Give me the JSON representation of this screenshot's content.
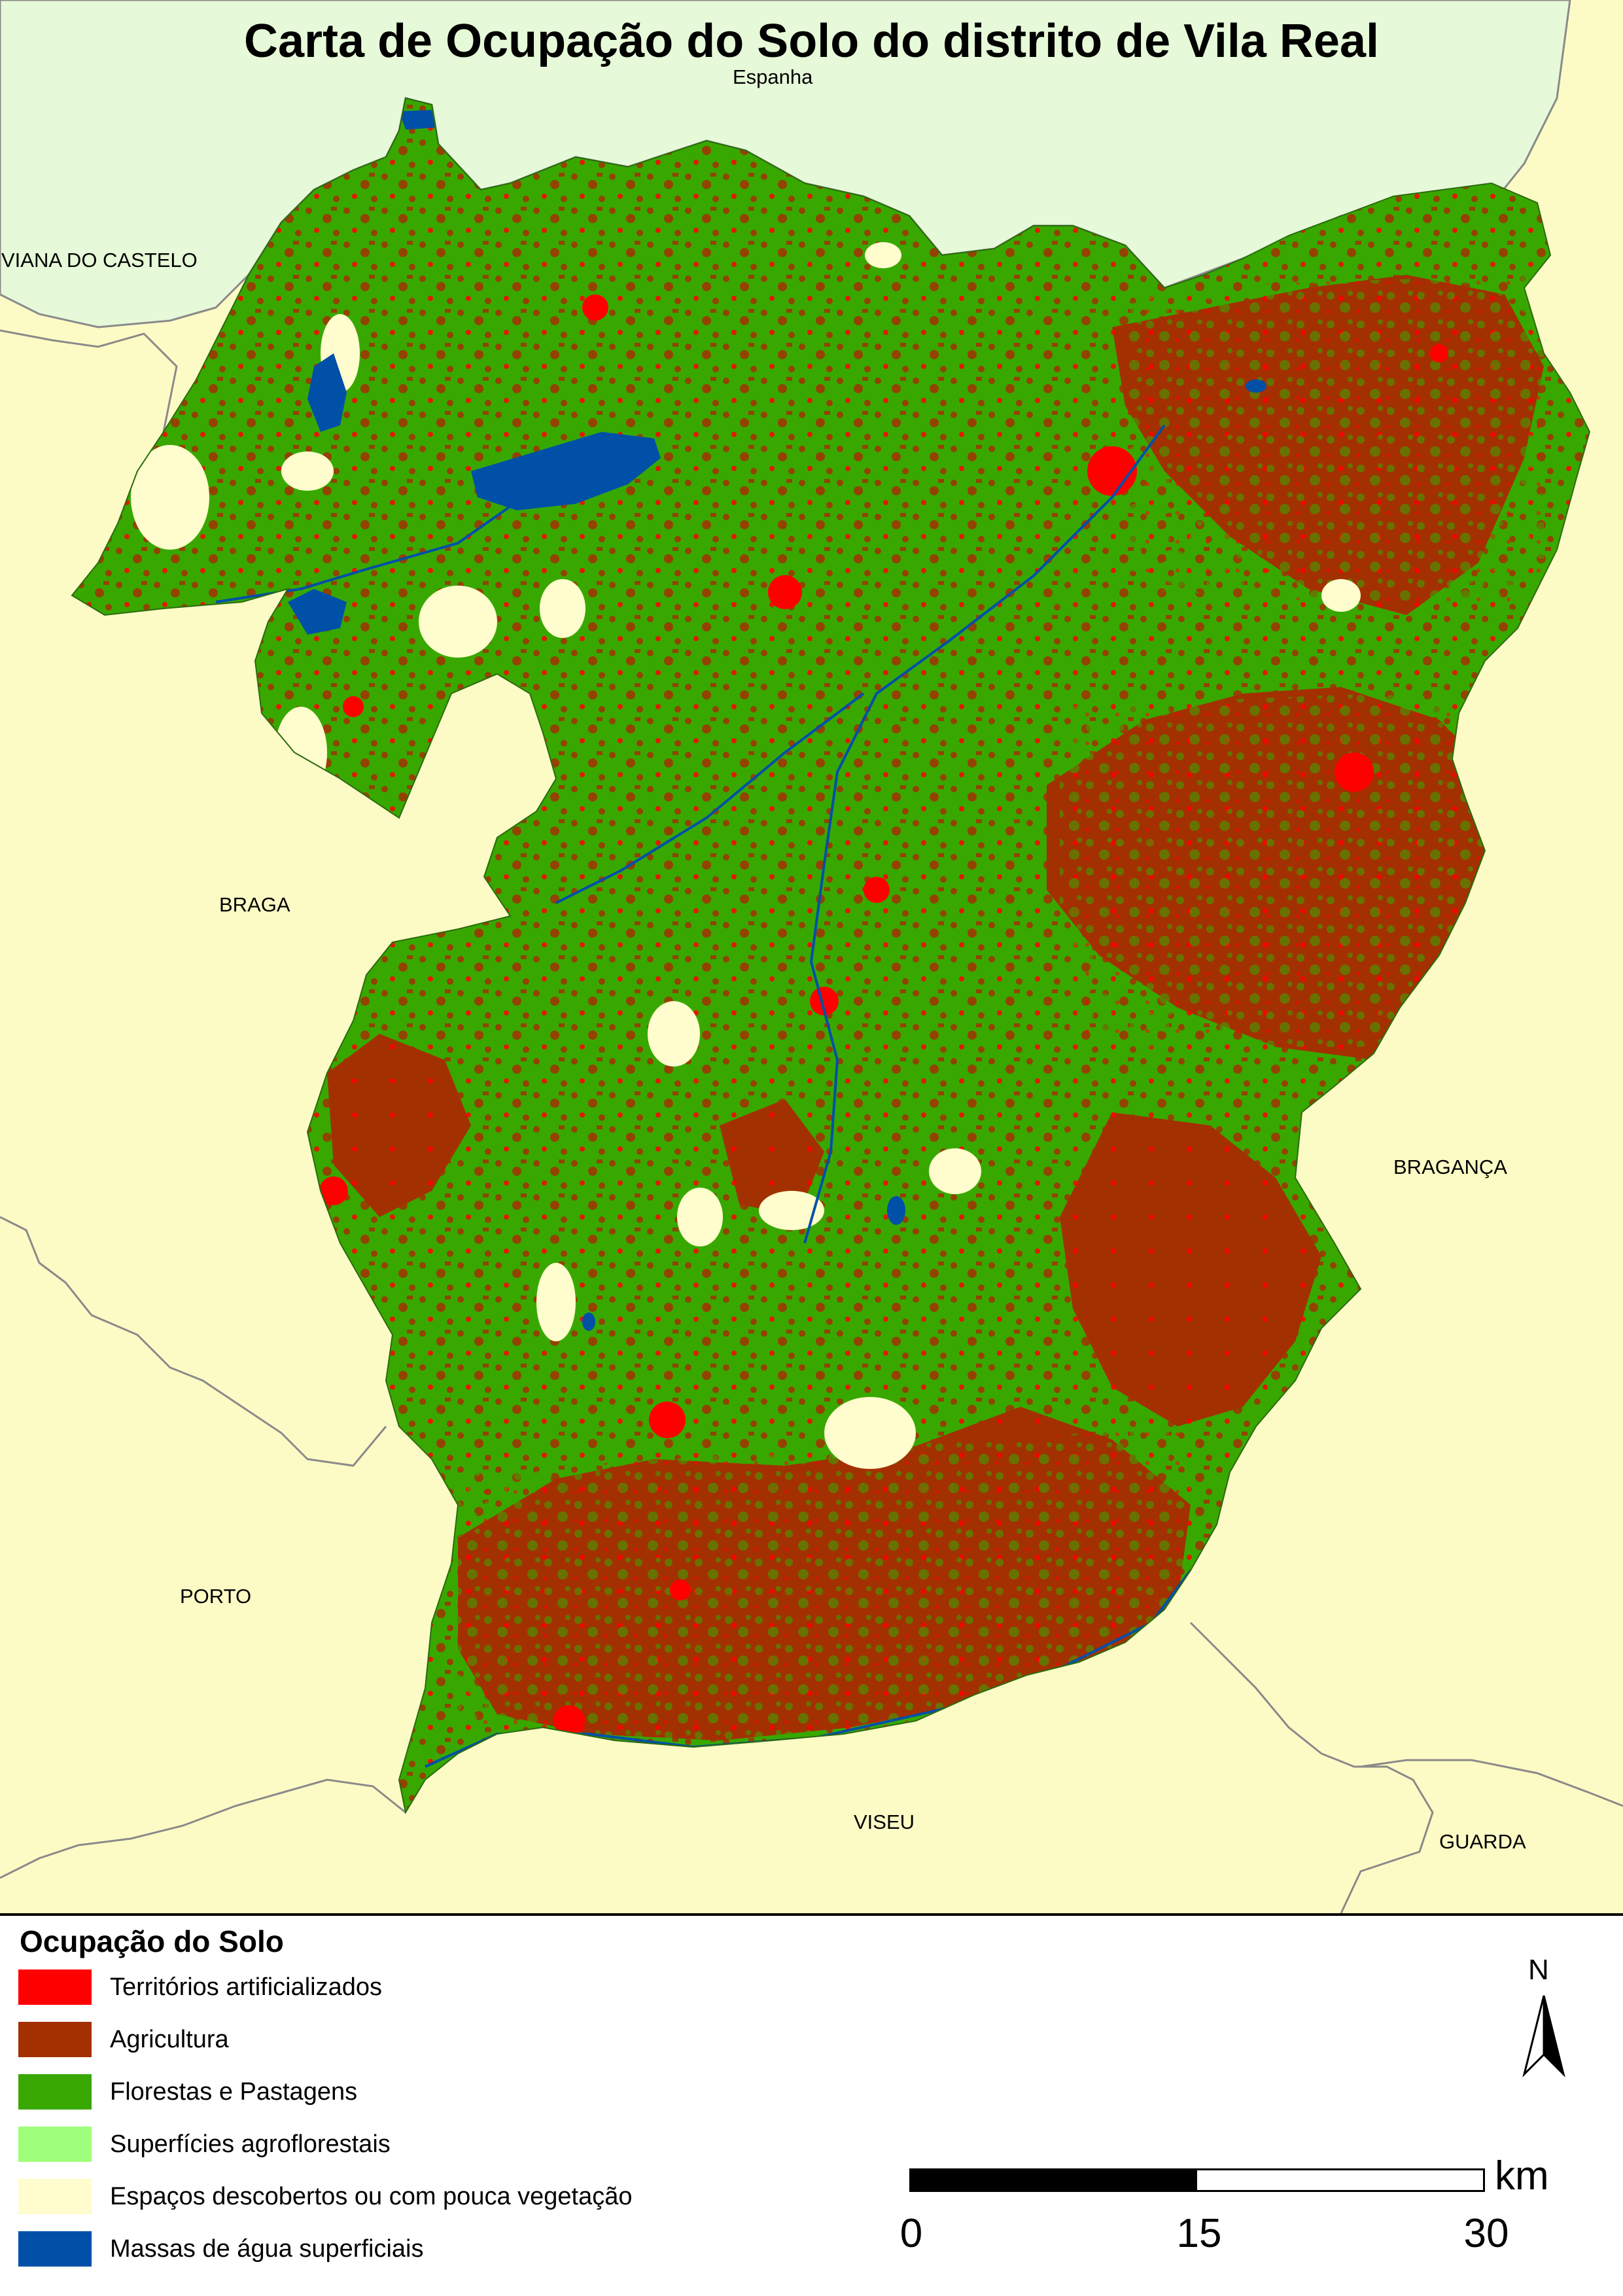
{
  "title": "Carta de Ocupação do Solo do distrito de Vila Real",
  "neighbours": {
    "spain": "Espanha",
    "viana": "VIANA DO CASTELO",
    "braga": "BRAGA",
    "porto": "PORTO",
    "viseu": "VISEU",
    "guarda": "GUARDA",
    "braganca": "BRAGANÇA"
  },
  "colors": {
    "spain_fill": "#e6f9d8",
    "portugal_fill": "#fdfbc5",
    "artificial": "#ff0000",
    "agriculture": "#a33000",
    "forest": "#38a800",
    "agroforest": "#a0ff7a",
    "bare": "#fffccd",
    "water": "#0050a8"
  },
  "legend": {
    "title": "Ocupação do Solo",
    "items": [
      {
        "label": "Territórios artificializados",
        "color": "#ff0000"
      },
      {
        "label": "Agricultura",
        "color": "#a33000"
      },
      {
        "label": "Florestas e Pastagens",
        "color": "#38a800"
      },
      {
        "label": "Superfícies agroflorestais",
        "color": "#a0ff7a"
      },
      {
        "label": "Espaços descobertos ou com pouca vegetação",
        "color": "#fffccd"
      },
      {
        "label": "Massas de água superficiais",
        "color": "#0050a8"
      }
    ]
  },
  "north_arrow": {
    "label": "N",
    "icon": "north-arrow-icon"
  },
  "scale": {
    "ticks": [
      "0",
      "15",
      "30"
    ],
    "unit": "km"
  }
}
